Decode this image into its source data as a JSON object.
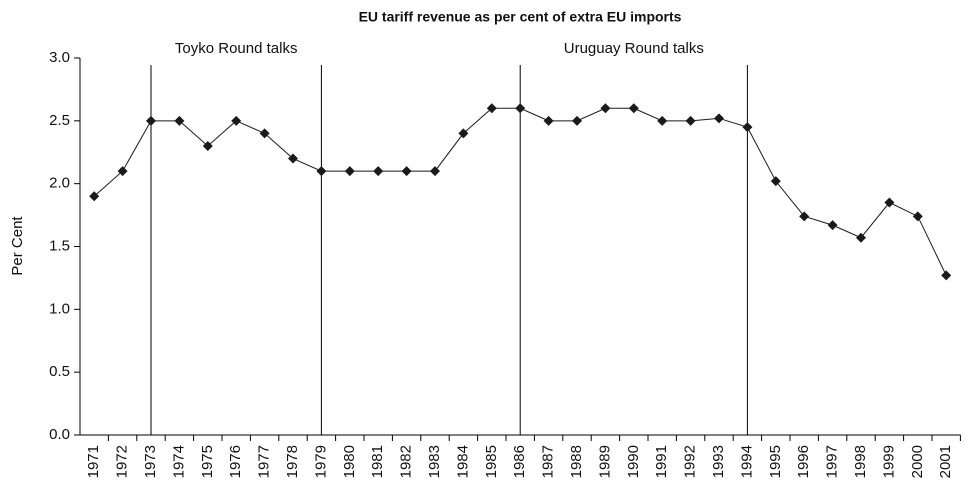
{
  "chart_data": {
    "type": "line",
    "title": "EU tariff revenue as per cent of extra EU imports",
    "y_label": "Per Cent",
    "categories": [
      "1971",
      "1972",
      "1973",
      "1974",
      "1975",
      "1976",
      "1977",
      "1978",
      "1979",
      "1980",
      "1981",
      "1982",
      "1983",
      "1984",
      "1985",
      "1986",
      "1987",
      "1988",
      "1989",
      "1990",
      "1991",
      "1992",
      "1993",
      "1994",
      "1995",
      "1996",
      "1997",
      "1998",
      "1999",
      "2000",
      "2001"
    ],
    "values": [
      1.9,
      2.1,
      2.5,
      2.5,
      2.3,
      2.5,
      2.4,
      2.2,
      2.1,
      2.1,
      2.1,
      2.1,
      2.1,
      2.4,
      2.6,
      2.6,
      2.5,
      2.5,
      2.6,
      2.6,
      2.5,
      2.5,
      2.52,
      2.45,
      2.02,
      1.74,
      1.67,
      1.57,
      1.85,
      1.74,
      1.27
    ],
    "color": "#1a1a1a",
    "ylim": [
      0,
      3
    ],
    "yticks": [
      {
        "value": 0,
        "label": "0.0"
      },
      0.5,
      {
        "value": 1,
        "label": "1.0"
      },
      1.5,
      {
        "value": 2,
        "label": "2.0"
      },
      2.5,
      {
        "value": 3,
        "label": "3.0"
      }
    ],
    "grid": false,
    "periods": [
      {
        "label": "Toyko Round talks",
        "start": "1973",
        "end": "1979"
      },
      {
        "label": "Uruguay Round talks",
        "start": "1986",
        "end": "1994"
      }
    ]
  }
}
